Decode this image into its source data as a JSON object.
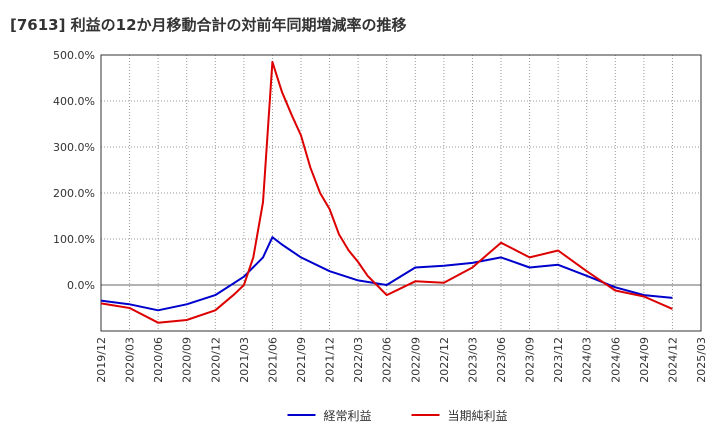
{
  "chart_data": {
    "type": "line",
    "title": "[7613]  利益の12か月移動合計の対前年同期増減率の推移",
    "xlabel": "",
    "ylabel": "",
    "ylim": [
      -100,
      500
    ],
    "y_ticks": [
      0,
      100,
      200,
      300,
      400,
      500
    ],
    "y_tick_labels": [
      "0.0%",
      "100.0%",
      "200.0%",
      "300.0%",
      "400.0%",
      "500.0%"
    ],
    "x_tick_labels": [
      "2019/12",
      "2020/03",
      "2020/06",
      "2020/09",
      "2020/12",
      "2021/03",
      "2021/06",
      "2021/09",
      "2021/12",
      "2022/03",
      "2022/06",
      "2022/09",
      "2022/12",
      "2023/03",
      "2023/06",
      "2023/09",
      "2023/12",
      "2024/03",
      "2024/06",
      "2024/09",
      "2024/12",
      "2025/03"
    ],
    "grid": true,
    "legend_position": "bottom-center",
    "series": [
      {
        "name": "経常利益",
        "color": "#0000cc",
        "points": [
          [
            0,
            -34
          ],
          [
            1,
            -42
          ],
          [
            2,
            -55
          ],
          [
            3,
            -42
          ],
          [
            4,
            -22
          ],
          [
            5,
            18
          ],
          [
            5.67,
            60
          ],
          [
            6,
            104
          ],
          [
            6.33,
            88
          ],
          [
            7,
            60
          ],
          [
            8,
            30
          ],
          [
            9,
            10
          ],
          [
            10,
            0
          ],
          [
            11,
            38
          ],
          [
            12,
            42
          ],
          [
            13,
            48
          ],
          [
            14,
            60
          ],
          [
            15,
            38
          ],
          [
            16,
            44
          ],
          [
            17,
            20
          ],
          [
            18,
            -5
          ],
          [
            19,
            -22
          ],
          [
            20,
            -28
          ]
        ]
      },
      {
        "name": "当期純利益",
        "color": "#dd0000",
        "points": [
          [
            0,
            -40
          ],
          [
            1,
            -50
          ],
          [
            2,
            -82
          ],
          [
            3,
            -76
          ],
          [
            4,
            -55
          ],
          [
            4.67,
            -20
          ],
          [
            5,
            0
          ],
          [
            5.33,
            60
          ],
          [
            5.67,
            180
          ],
          [
            6,
            485
          ],
          [
            6.33,
            420
          ],
          [
            6.67,
            370
          ],
          [
            7,
            325
          ],
          [
            7.33,
            255
          ],
          [
            7.67,
            200
          ],
          [
            8,
            165
          ],
          [
            8.33,
            110
          ],
          [
            8.67,
            75
          ],
          [
            9,
            50
          ],
          [
            9.33,
            20
          ],
          [
            10,
            -22
          ],
          [
            11,
            8
          ],
          [
            12,
            5
          ],
          [
            13,
            38
          ],
          [
            14,
            92
          ],
          [
            15,
            60
          ],
          [
            16,
            75
          ],
          [
            17,
            30
          ],
          [
            18,
            -12
          ],
          [
            19,
            -25
          ],
          [
            20,
            -52
          ]
        ]
      }
    ]
  }
}
